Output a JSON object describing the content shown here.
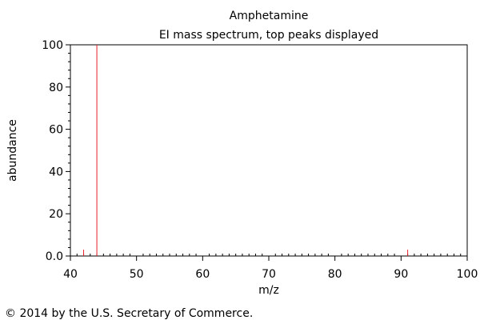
{
  "chart_data": {
    "type": "bar",
    "title": "Amphetamine",
    "subtitle": "EI mass spectrum, top peaks displayed",
    "xlabel": "m/z",
    "ylabel": "abundance",
    "xlim": [
      40,
      100
    ],
    "ylim": [
      0,
      100
    ],
    "x_ticks": [
      "40",
      "50",
      "60",
      "70",
      "80",
      "90",
      "100"
    ],
    "y_ticks": [
      "0.0",
      "20",
      "40",
      "60",
      "80",
      "100"
    ],
    "grid": false,
    "peak_color": "#e8202a",
    "peaks": [
      {
        "mz": 42,
        "abundance": 3
      },
      {
        "mz": 44,
        "abundance": 100
      },
      {
        "mz": 91,
        "abundance": 3
      }
    ]
  },
  "footer": {
    "copyright": "© 2014 by the U.S. Secretary of Commerce."
  }
}
